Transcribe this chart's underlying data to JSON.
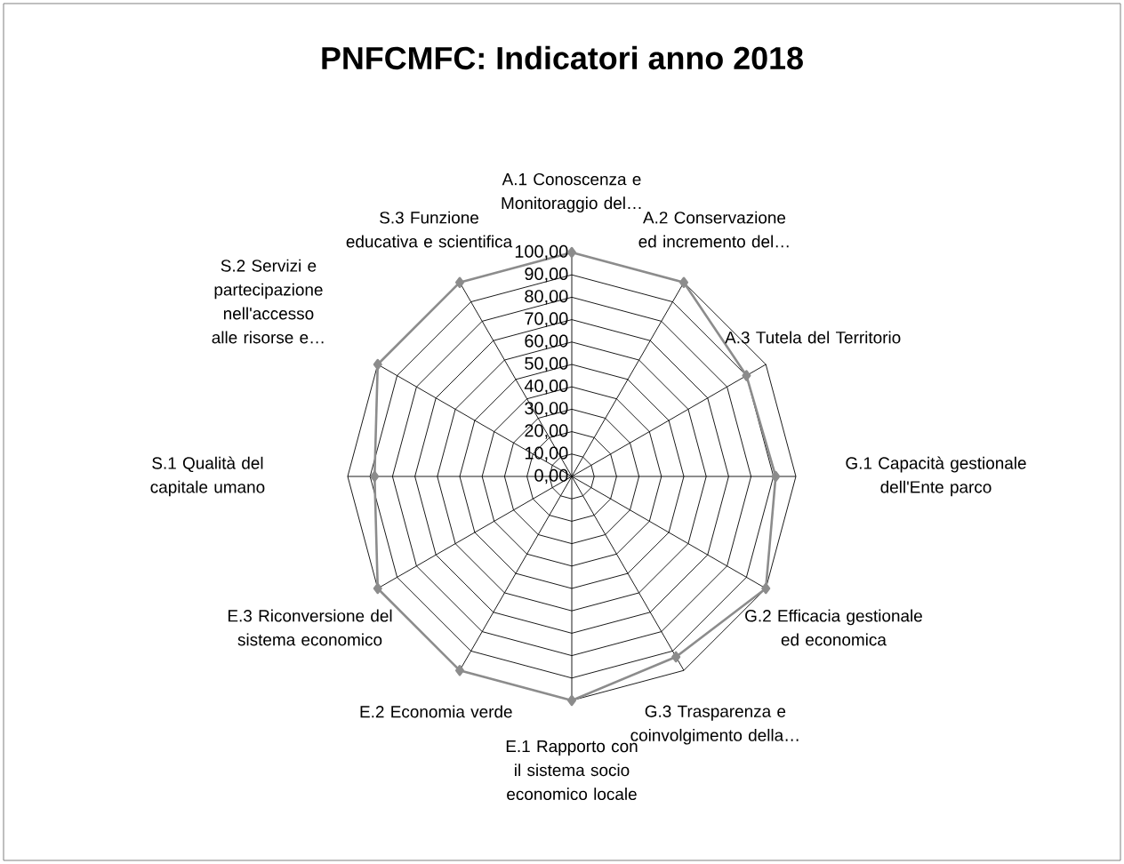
{
  "chart_data": {
    "type": "radar",
    "title": "PNFCMFC: Indicatori anno 2018",
    "categories": [
      "A.1 Conoscenza e Monitoraggio del…",
      "A.2 Conservazione ed incremento del…",
      "A.3 Tutela del Territorio",
      "G.1 Capacità gestionale dell'Ente parco",
      "G.2 Efficacia gestionale ed economica",
      "G.3 Trasparenza e coinvolgimento della…",
      "E.1 Rapporto con il sistema socio economico locale",
      "E.2 Economia verde",
      "E.3 Riconversione del sistema economico",
      "S.1 Qualità del capitale umano",
      "S.2 Servizi e partecipazione nell'accesso alle risorse e…",
      "S.3 Funzione educativa e scientifica"
    ],
    "series": [
      {
        "color": "#8c8c8c",
        "values": [
          100,
          100,
          90,
          91,
          100,
          93,
          100,
          100,
          100,
          88,
          100,
          100
        ]
      }
    ],
    "ylim": [
      0,
      100
    ],
    "yticks": [
      {
        "value": 0,
        "label": "0,00"
      },
      {
        "value": 10,
        "label": "10,00"
      },
      {
        "value": 20,
        "label": "20,00"
      },
      {
        "value": 30,
        "label": "30,00"
      },
      {
        "value": 40,
        "label": "40,00"
      },
      {
        "value": 50,
        "label": "50,00"
      },
      {
        "value": 60,
        "label": "60,00"
      },
      {
        "value": 70,
        "label": "70,00"
      },
      {
        "value": 80,
        "label": "80,00"
      },
      {
        "value": 90,
        "label": "90,00"
      },
      {
        "value": 100,
        "label": "100,00"
      }
    ],
    "grid": true,
    "marker": "diamond"
  }
}
